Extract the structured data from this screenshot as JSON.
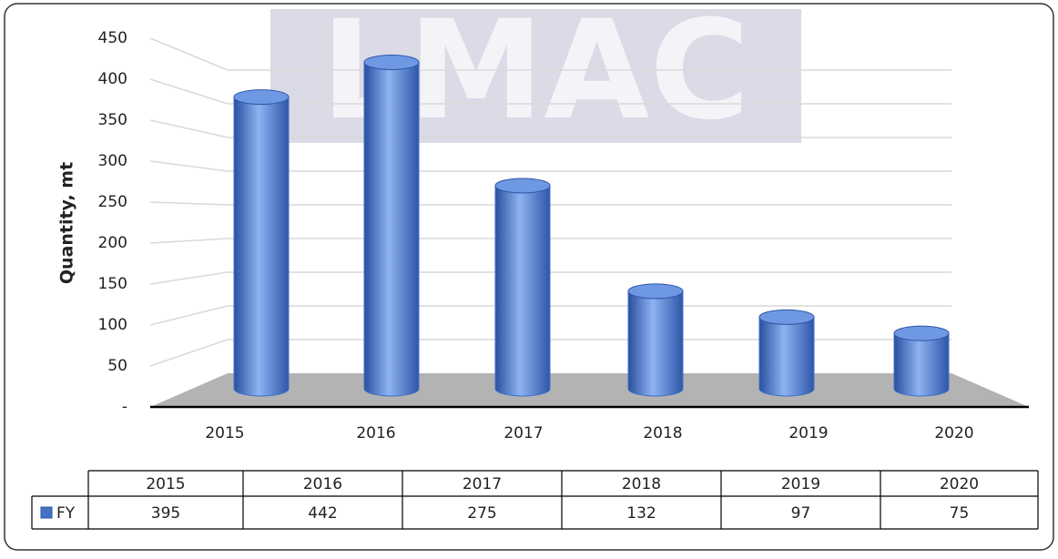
{
  "chart_data": {
    "type": "bar",
    "watermark": "LMAC",
    "y_label": "Quantity, mt",
    "categories": [
      "2015",
      "2016",
      "2017",
      "2018",
      "2019",
      "2020"
    ],
    "series": [
      {
        "name": "FY",
        "color": "#4472c4",
        "values": [
          395,
          442,
          275,
          132,
          97,
          75
        ]
      }
    ],
    "ylim": [
      0,
      450
    ],
    "yticks": [
      {
        "value": 0,
        "label": "-"
      },
      50,
      100,
      150,
      200,
      250,
      300,
      350,
      400,
      450
    ],
    "grid": true,
    "data_table": true
  }
}
